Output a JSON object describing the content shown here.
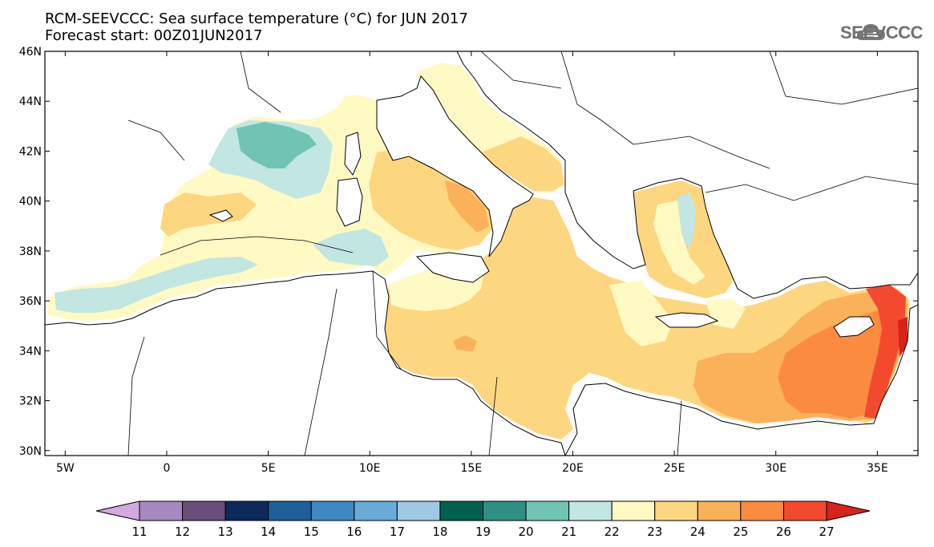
{
  "header": {
    "title_line1": "RCM-SEEVCCC: Sea surface temperature (°C) for JUN 2017",
    "title_line2": "Forecast start: 00Z01JUN2017"
  },
  "logo": {
    "text": "SEEVCCC",
    "icon": "cloud-icon"
  },
  "map": {
    "lon_range": [
      -6,
      37
    ],
    "lat_range": [
      29.8,
      46
    ],
    "lon_ticks": [
      {
        "value": -5,
        "label": "5W"
      },
      {
        "value": 0,
        "label": "0"
      },
      {
        "value": 5,
        "label": "5E"
      },
      {
        "value": 10,
        "label": "10E"
      },
      {
        "value": 15,
        "label": "15E"
      },
      {
        "value": 20,
        "label": "20E"
      },
      {
        "value": 25,
        "label": "25E"
      },
      {
        "value": 30,
        "label": "30E"
      },
      {
        "value": 35,
        "label": "35E"
      }
    ],
    "lat_ticks": [
      {
        "value": 30,
        "label": "30N"
      },
      {
        "value": 32,
        "label": "32N"
      },
      {
        "value": 34,
        "label": "34N"
      },
      {
        "value": 36,
        "label": "36N"
      },
      {
        "value": 38,
        "label": "38N"
      },
      {
        "value": 40,
        "label": "40N"
      },
      {
        "value": 42,
        "label": "42N"
      },
      {
        "value": 44,
        "label": "44N"
      },
      {
        "value": 46,
        "label": "46N"
      }
    ]
  },
  "colorbar": {
    "labels": [
      "11",
      "12",
      "13",
      "14",
      "15",
      "16",
      "17",
      "18",
      "19",
      "20",
      "21",
      "22",
      "23",
      "24",
      "25",
      "26",
      "27"
    ],
    "colors": [
      "#d4a9de",
      "#a788c0",
      "#6a4d79",
      "#0d2a5c",
      "#1e5f9a",
      "#3f89c3",
      "#6aaad7",
      "#9fc8e2",
      "#00614f",
      "#2e8f84",
      "#71c4b4",
      "#c2e6e1",
      "#fff9c4",
      "#fdd680",
      "#fbb05a",
      "#fb8b3f",
      "#f34a2f",
      "#d7231c"
    ]
  }
}
